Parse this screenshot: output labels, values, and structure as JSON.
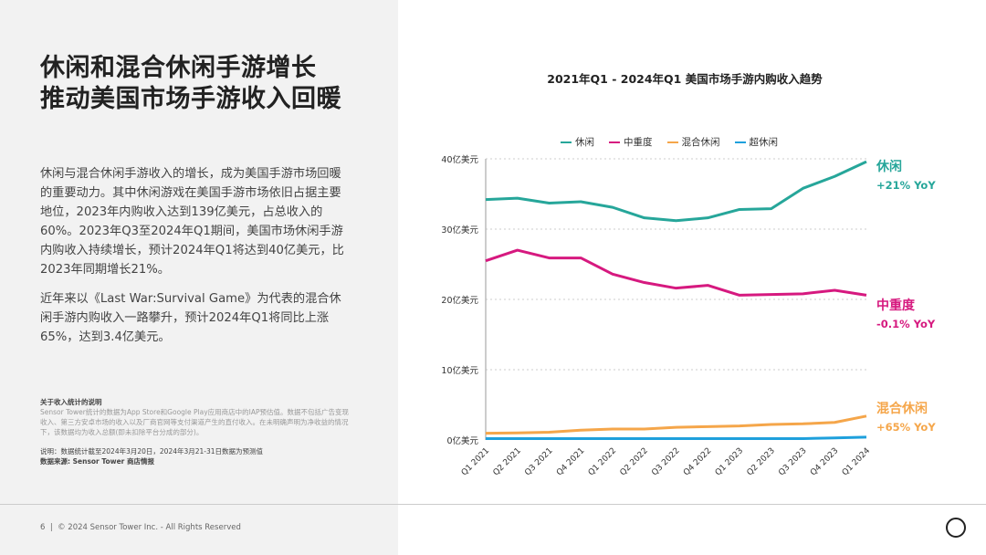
{
  "left": {
    "title_line1": "休闲和混合休闲手游增长",
    "title_line2": "推动美国市场手游收入回暖",
    "para1": "休闲与混合休闲手游收入的增长，成为美国手游市场回暖的重要动力。其中休闲游戏在美国手游市场依旧占据主要地位，2023年内购收入达到139亿美元，占总收入的60%。2023年Q3至2024年Q1期间，美国市场休闲手游内购收入持续增长，预计2024年Q1将达到40亿美元，比2023年同期增长21%。",
    "para2": "近年来以《Last War:Survival Game》为代表的混合休闲手游内购收入一路攀升，预计2024年Q1将同比上涨65%，达到3.4亿美元。",
    "note_heading": "关于收入统计的说明",
    "note_text": "Sensor Tower统计的数据为App Store和Google Play应用商店中的IAP预估值。数据不包括广告变现收入、第三方安卓市场的收入以及厂商官网等支付渠道产生的直付收入。在未明确声明为净收益的情况下，该数据均为收入总额(即未扣除平台分成的部分)。",
    "note_explain": "说明：数据统计截至2024年3月20日，2024年3月21-31日数据为预测值",
    "note_source": "数据来源: Sensor Tower 商店情报"
  },
  "footer": {
    "page": "6",
    "copyright": "© 2024 Sensor Tower Inc. - All Rights Reserved"
  },
  "chart_data": {
    "type": "line",
    "title": "2021年Q1 - 2024年Q1 美国市场手游内购收入趋势",
    "categories": [
      "Q1 2021",
      "Q2 2021",
      "Q3 2021",
      "Q4 2021",
      "Q1 2022",
      "Q2 2022",
      "Q3 2022",
      "Q4 2022",
      "Q1 2023",
      "Q2 2023",
      "Q3 2023",
      "Q4 2023",
      "Q1 2024"
    ],
    "yticks": [
      "0亿美元",
      "10亿美元",
      "20亿美元",
      "30亿美元",
      "40亿美元"
    ],
    "ylim": [
      0,
      40
    ],
    "grid": true,
    "legend": "top",
    "series": [
      {
        "name": "休闲",
        "color": "#26a69a",
        "values": [
          34.2,
          34.4,
          33.7,
          33.9,
          33.1,
          31.6,
          31.2,
          31.6,
          32.8,
          32.9,
          35.8,
          37.5,
          39.6
        ],
        "label": "休闲",
        "yoy": "+21% YoY"
      },
      {
        "name": "中重度",
        "color": "#d6197f",
        "values": [
          25.5,
          27.0,
          25.9,
          25.9,
          23.6,
          22.4,
          21.6,
          22.0,
          20.6,
          20.7,
          20.8,
          21.3,
          20.6
        ],
        "label": "中重度",
        "yoy": "-0.1% YoY"
      },
      {
        "name": "混合休闲",
        "color": "#f5a64a",
        "values": [
          0.95,
          1.0,
          1.1,
          1.4,
          1.56,
          1.56,
          1.8,
          1.9,
          2.0,
          2.2,
          2.3,
          2.5,
          3.4
        ],
        "label": "混合休闲",
        "yoy": "+65% YoY"
      },
      {
        "name": "超休闲",
        "color": "#1ea0dc",
        "values": [
          0.2,
          0.2,
          0.2,
          0.2,
          0.2,
          0.2,
          0.2,
          0.2,
          0.2,
          0.2,
          0.2,
          0.3,
          0.4
        ]
      }
    ]
  }
}
